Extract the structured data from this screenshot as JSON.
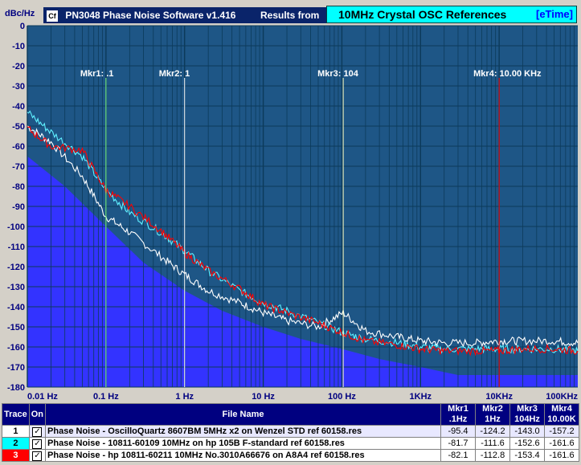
{
  "window": {
    "title": "PN3048 Phase Noise Software v1.416",
    "results_label": "Results from",
    "reference_title": "10MHz Crystal OSC References",
    "etime_label": "[eTime]"
  },
  "colors": {
    "plot_background": "#1e5686",
    "grid": "#0c3a5a",
    "floor_fill": "#3333ff",
    "trace1": "#ffffff",
    "trace2": "#5ff0ff",
    "trace3": "#ff0000",
    "mkr1": "#80ff80",
    "mkr2": "#ffffff",
    "mkr3": "#ffffc0",
    "mkr4": "#ff0000"
  },
  "chart_data": {
    "type": "line",
    "ylabel": "dBc/Hz",
    "xscale": "log",
    "xlim": [
      0.01,
      100000
    ],
    "ylim": [
      -180,
      0
    ],
    "grid": true,
    "yticks": [
      0,
      -10,
      -20,
      -30,
      -40,
      -50,
      -60,
      -70,
      -80,
      -90,
      -100,
      -110,
      -120,
      -130,
      -140,
      -150,
      -160,
      -170,
      -180
    ],
    "ytick_labels": [
      "0",
      "-10",
      "-20",
      "-30",
      "-40",
      "-50",
      "-60",
      "-70",
      "-80",
      "-90",
      "-100",
      "-110",
      "-120",
      "-130",
      "-140",
      "-150",
      "-160",
      "-170",
      "-180"
    ],
    "xticks": [
      0.01,
      0.1,
      1,
      10,
      100,
      1000,
      10000,
      100000
    ],
    "xtick_labels": [
      "0.01 Hz",
      "0.1 Hz",
      "1 Hz",
      "10 Hz",
      "100 Hz",
      "1KHz",
      "10KHz",
      "100KHz"
    ],
    "markers": [
      {
        "label": "Mkr1: .1",
        "x": 0.1,
        "color_key": "mkr1"
      },
      {
        "label": "Mkr2: 1",
        "x": 1,
        "color_key": "mkr2"
      },
      {
        "label": "Mkr3: 104",
        "x": 104,
        "color_key": "mkr3"
      },
      {
        "label": "Mkr4: 10.00 KHz",
        "x": 10000,
        "color_key": "mkr4"
      }
    ],
    "floor": {
      "x": [
        0.01,
        0.03,
        0.1,
        0.3,
        1,
        3,
        10,
        30,
        100,
        300,
        1000,
        3000,
        100000
      ],
      "y": [
        -65,
        -80,
        -100,
        -118,
        -132,
        -142,
        -150,
        -156,
        -161,
        -166,
        -170,
        -174,
        -174
      ]
    },
    "series": [
      {
        "color_key": "trace1",
        "x": [
          0.01,
          0.02,
          0.05,
          0.1,
          0.2,
          0.5,
          1,
          2,
          5,
          10,
          20,
          50,
          104,
          200,
          500,
          1000,
          2000,
          5000,
          10000,
          20000,
          50000,
          100000
        ],
        "y": [
          -50,
          -58,
          -75,
          -95,
          -103,
          -115,
          -124,
          -132,
          -138,
          -143,
          -147,
          -150,
          -143,
          -152,
          -155,
          -157,
          -158,
          -158,
          -157,
          -157,
          -157,
          -158
        ]
      },
      {
        "color_key": "trace2",
        "x": [
          0.01,
          0.02,
          0.05,
          0.1,
          0.2,
          0.5,
          1,
          2,
          5,
          10,
          20,
          50,
          104,
          200,
          500,
          1000,
          2000,
          5000,
          10000,
          20000,
          50000,
          100000
        ],
        "y": [
          -43,
          -53,
          -65,
          -82,
          -93,
          -103,
          -112,
          -122,
          -132,
          -138,
          -142,
          -148,
          -153,
          -156,
          -158,
          -160,
          -161,
          -161,
          -161,
          -161,
          -161,
          -162
        ]
      },
      {
        "color_key": "trace3",
        "x": [
          0.01,
          0.02,
          0.05,
          0.1,
          0.2,
          0.5,
          1,
          2,
          5,
          10,
          20,
          50,
          104,
          200,
          500,
          1000,
          2000,
          5000,
          10000,
          20000,
          50000,
          100000
        ],
        "y": [
          -51,
          -60,
          -62,
          -82,
          -90,
          -102,
          -113,
          -122,
          -131,
          -139,
          -143,
          -148,
          -153,
          -157,
          -159,
          -161,
          -162,
          -162,
          -162,
          -161,
          -161,
          -162
        ]
      }
    ]
  },
  "table": {
    "headers": {
      "trace": "Trace",
      "on": "On",
      "file_name": "File Name",
      "mkr1_a": "Mkr1",
      "mkr1_b": ".1Hz",
      "mkr2_a": "Mkr2",
      "mkr2_b": "1Hz",
      "mkr3_a": "Mkr3",
      "mkr3_b": "104Hz",
      "mkr4_a": "Mkr4",
      "mkr4_b": "10.00K"
    },
    "rows": [
      {
        "num": "1",
        "checked": "✓",
        "file": "Phase Noise - OscilloQuartz 8607BM 5MHz x2 on Wenzel STD   ref 60158.res",
        "m1": "-95.4",
        "m2": "-124.2",
        "m3": "-143.0",
        "m4": "-157.2"
      },
      {
        "num": "2",
        "checked": "✓",
        "file": "Phase Noise - 10811-60109 10MHz on hp 105B F-standard    ref 60158.res",
        "m1": "-81.7",
        "m2": "-111.6",
        "m3": "-152.6",
        "m4": "-161.6"
      },
      {
        "num": "3",
        "checked": "✓",
        "file": "Phase Noise - hp 10811-60211 10MHz  No.3010A66676 on A8A4  ref 60158.res",
        "m1": "-82.1",
        "m2": "-112.8",
        "m3": "-153.4",
        "m4": "-161.6"
      }
    ]
  }
}
